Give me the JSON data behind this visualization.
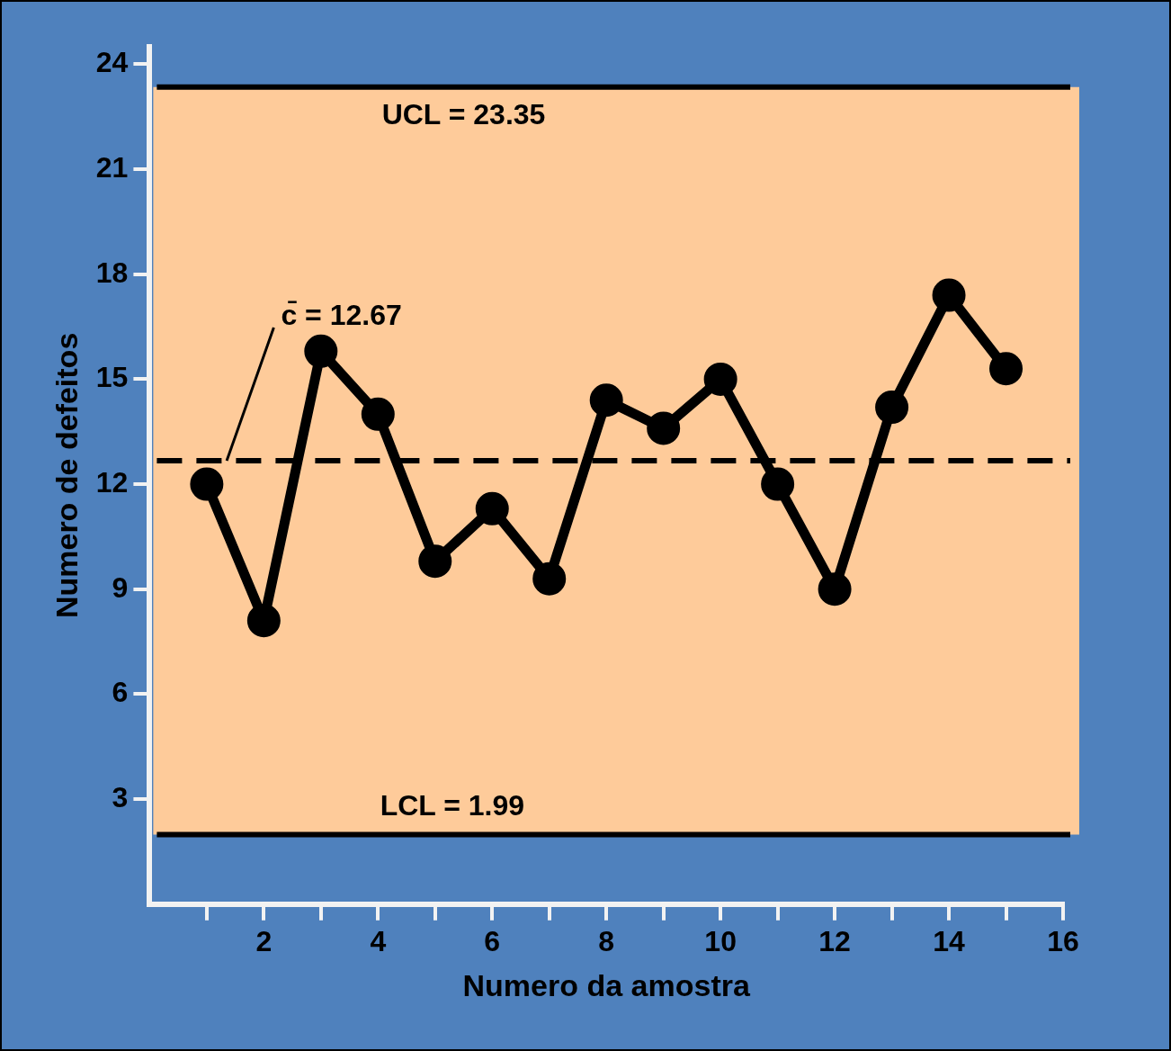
{
  "chart_data": {
    "type": "line",
    "xlabel": "Numero da amostra",
    "ylabel": "Numero de defeitos",
    "x": [
      1,
      2,
      3,
      4,
      5,
      6,
      7,
      8,
      9,
      10,
      11,
      12,
      13,
      14,
      15
    ],
    "values": [
      12,
      8.1,
      15.8,
      14,
      9.8,
      11.3,
      9.3,
      14.4,
      13.6,
      15,
      12,
      9,
      14.2,
      17.4,
      15.3
    ],
    "color": "#000000",
    "marker": "circle",
    "grid": false,
    "legend": false,
    "xlim": [
      0,
      16
    ],
    "xticks": [
      {
        "value": 1,
        "label": null
      },
      2,
      {
        "value": 3,
        "label": null
      },
      4,
      {
        "value": 5,
        "label": null
      },
      6,
      {
        "value": 7,
        "label": null
      },
      8,
      {
        "value": 9,
        "label": null
      },
      10,
      {
        "value": 11,
        "label": null
      },
      12,
      {
        "value": 13,
        "label": null
      },
      14,
      {
        "value": 15,
        "label": null
      },
      16
    ],
    "ylim": [
      0,
      24.5
    ],
    "yticks": [
      3,
      6,
      9,
      12,
      15,
      18,
      21,
      24
    ],
    "ref_lines": [
      {
        "axis": "y",
        "value": 23.35,
        "label": "UCL = 23.35",
        "color": "#000000",
        "line_style": "solid"
      },
      {
        "axis": "y",
        "value": 12.67,
        "label": "c̄ = 12.67",
        "color": "#000000",
        "line_style": "dashed"
      },
      {
        "axis": "y",
        "value": 1.99,
        "label": "LCL = 1.99",
        "color": "#000000",
        "line_style": "solid"
      }
    ],
    "bands": [
      {
        "axis": "y",
        "from": 1.99,
        "to": 23.35,
        "color": "#fecb9a"
      }
    ]
  }
}
